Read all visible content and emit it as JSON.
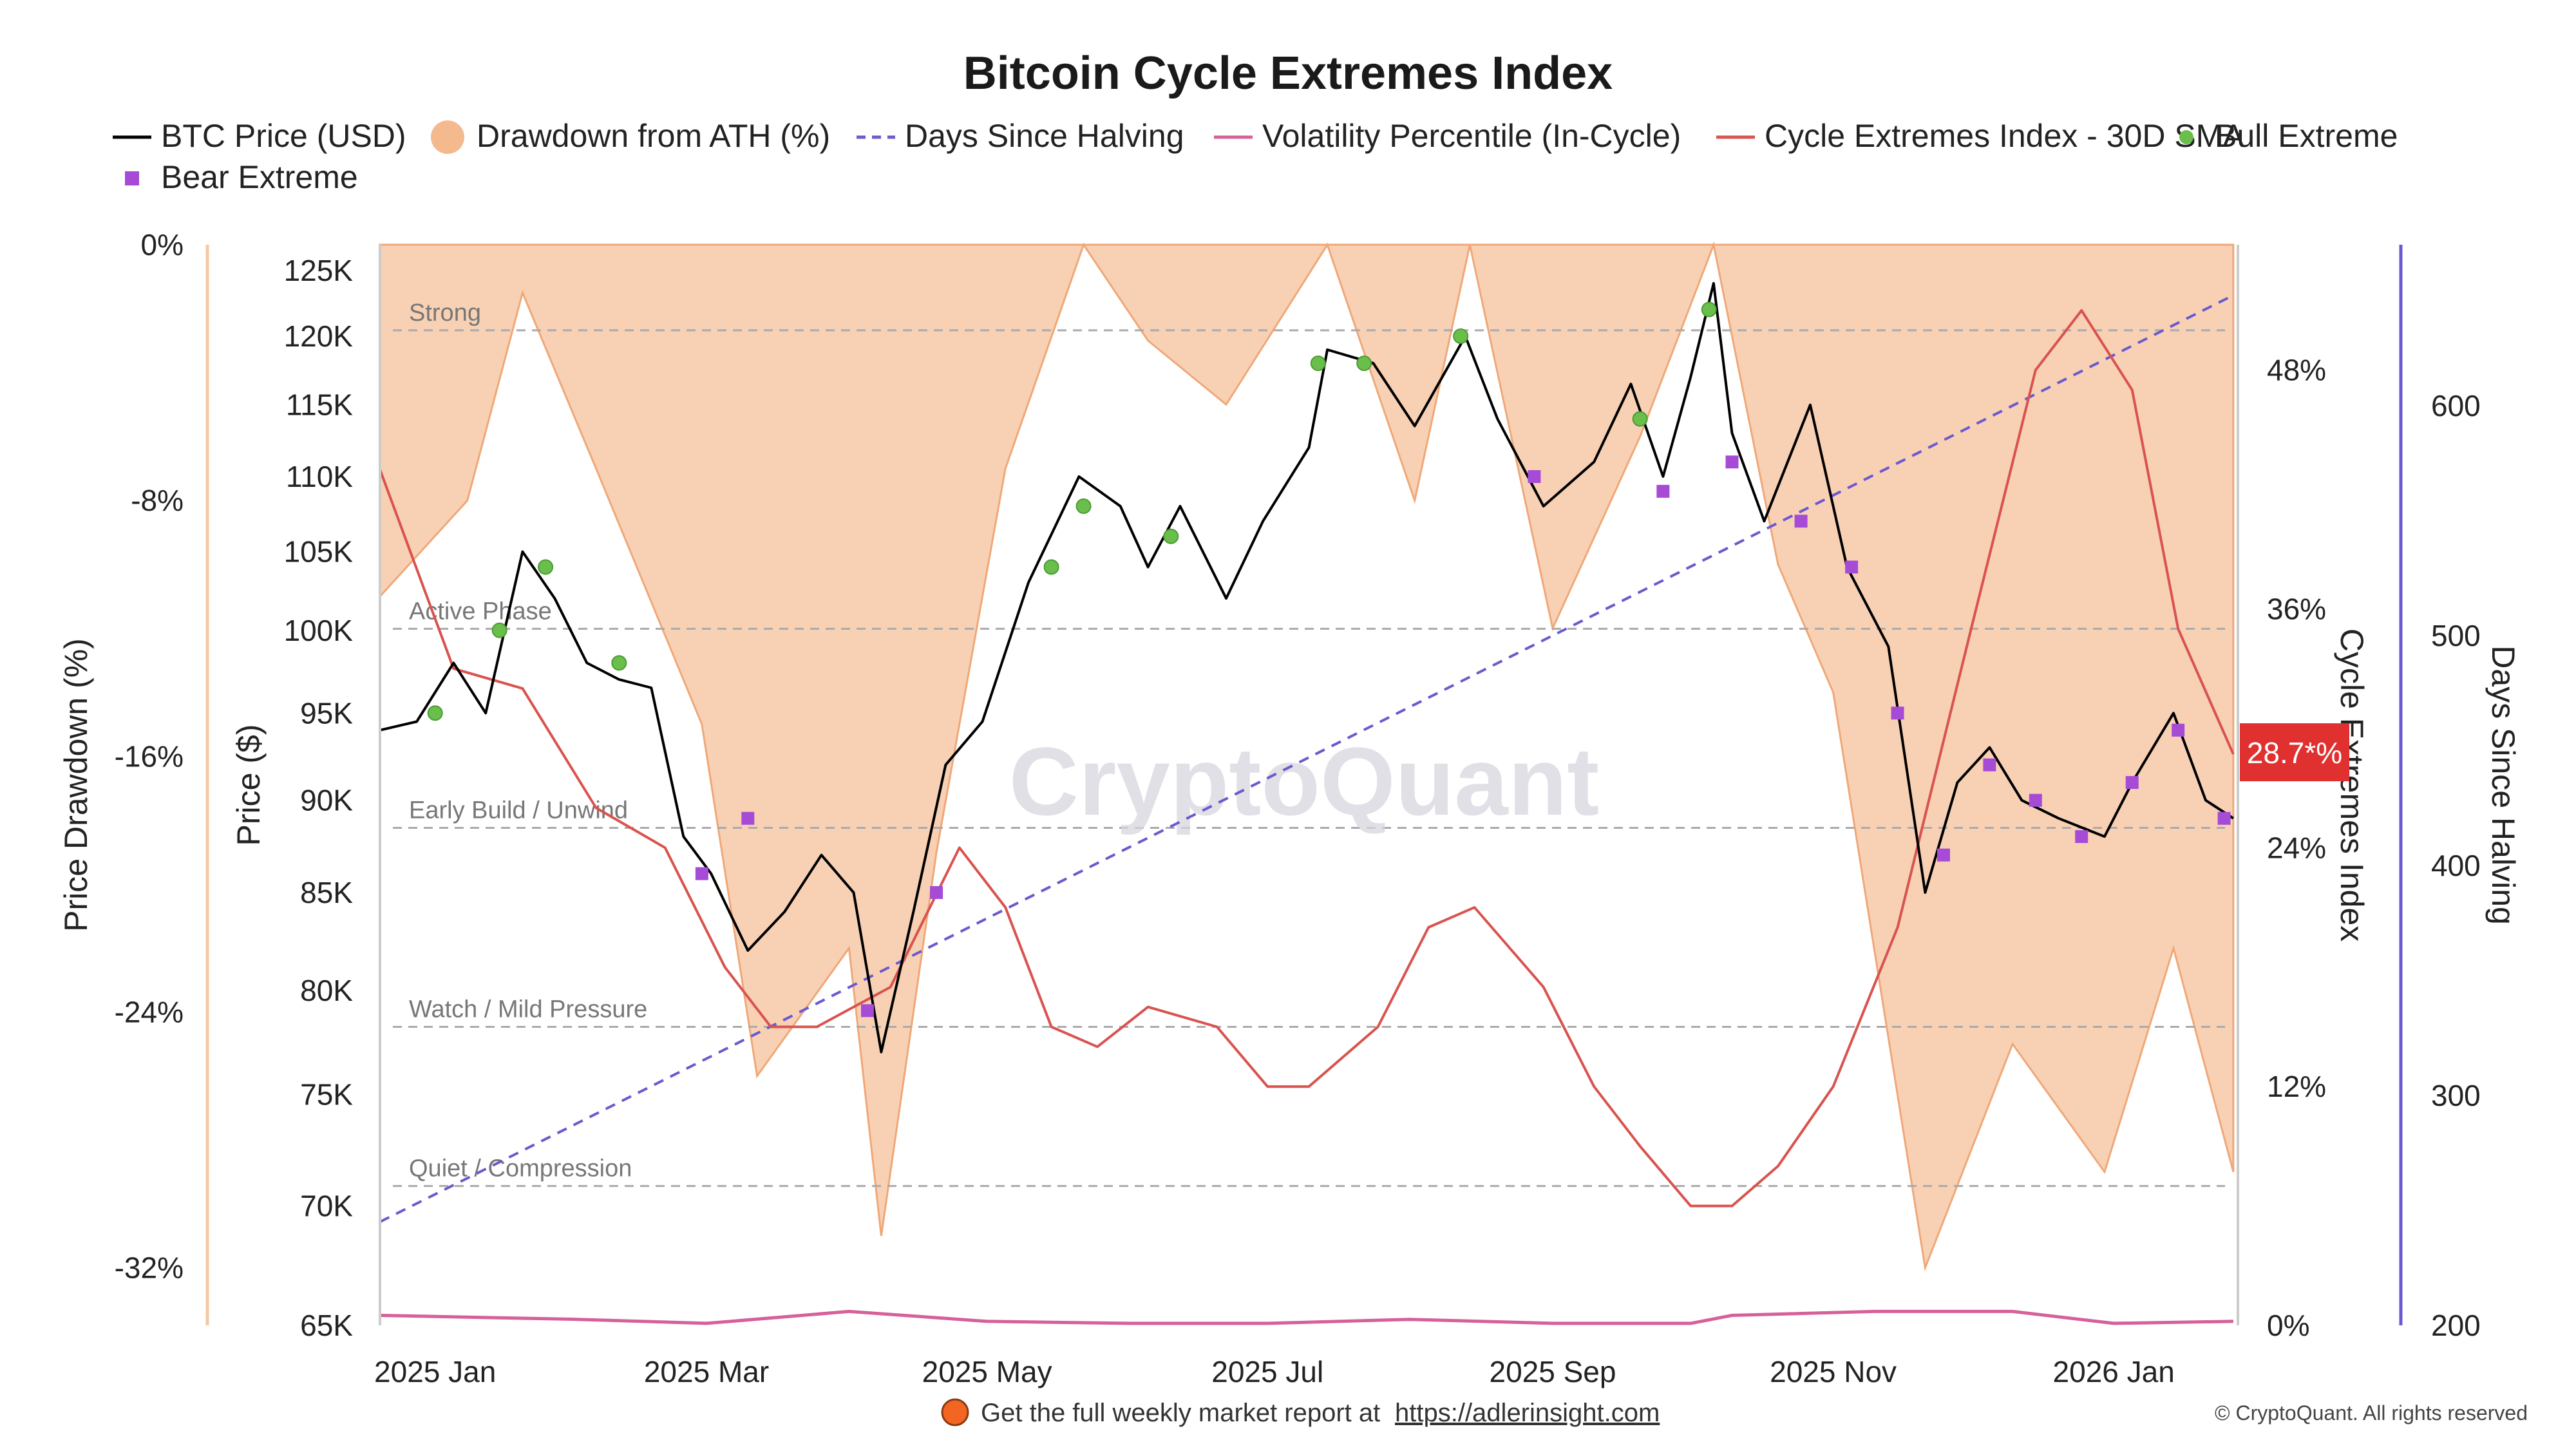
{
  "chart_data": {
    "type": "line",
    "title": "Bitcoin Cycle Extremes Index",
    "legend": [
      {
        "label": "BTC Price (USD)",
        "kind": "line",
        "color": "#000000"
      },
      {
        "label": "Drawdown from ATH (%)",
        "kind": "area",
        "color": "#f5b98e"
      },
      {
        "label": "Days Since Halving",
        "kind": "dashed",
        "color": "#6a5acd"
      },
      {
        "label": "Volatility Percentile (In-Cycle)",
        "kind": "line",
        "color": "#d6609a"
      },
      {
        "label": "Cycle Extremes Index - 30D SMA",
        "kind": "line",
        "color": "#d9534f"
      },
      {
        "label": "Bull Extreme",
        "kind": "dot",
        "color": "#6abf4b"
      },
      {
        "label": "Bear Extreme",
        "kind": "square",
        "color": "#a64bd6"
      }
    ],
    "axes": {
      "price": {
        "title": "Price ($)",
        "ticks": [
          "65K",
          "70K",
          "75K",
          "80K",
          "85K",
          "90K",
          "95K",
          "100K",
          "105K",
          "110K",
          "115K",
          "120K",
          "125K"
        ],
        "tick_values": [
          65000,
          70000,
          75000,
          80000,
          85000,
          90000,
          95000,
          100000,
          105000,
          110000,
          115000,
          120000,
          125000
        ],
        "scale": "log",
        "range": [
          65000,
          127000
        ]
      },
      "drawdown": {
        "title": "Price Drawdown (%)",
        "ticks": [
          "0%",
          "-8%",
          "-16%",
          "-24%",
          "-32%"
        ],
        "tick_values": [
          0,
          -8,
          -16,
          -24,
          -32
        ],
        "range": [
          -33.8,
          0
        ]
      },
      "cei": {
        "title": "Cycle Extremes Index",
        "ticks": [
          "0%",
          "12%",
          "24%",
          "36%",
          "48%"
        ],
        "tick_values": [
          0,
          12,
          24,
          36,
          48
        ],
        "range": [
          0,
          54.3
        ]
      },
      "days": {
        "title": "Days Since Halving",
        "ticks": [
          "200",
          "300",
          "400",
          "500",
          "600"
        ],
        "tick_values": [
          200,
          300,
          400,
          500,
          600
        ],
        "range": [
          200,
          670
        ]
      },
      "x": {
        "ticks": [
          "2025 Jan",
          "2025 Mar",
          "2025 May",
          "2025 Jul",
          "2025 Sep",
          "2025 Nov",
          "2026 Jan"
        ],
        "tick_dates": [
          "2025-01-01",
          "2025-03-01",
          "2025-05-01",
          "2025-07-01",
          "2025-09-01",
          "2025-11-01",
          "2026-01-01"
        ],
        "range": [
          "2024-12-20",
          "2026-01-28"
        ]
      }
    },
    "bands": [
      {
        "label": "Strong",
        "value": 50
      },
      {
        "label": "Active Phase",
        "value": 35
      },
      {
        "label": "Early Build / Unwind",
        "value": 25
      },
      {
        "label": "Watch / Mild Pressure",
        "value": 15
      },
      {
        "label": "Quiet / Compression",
        "value": 7
      }
    ],
    "current_label": "28.7*%",
    "series": [
      {
        "name": "BTC Price (USD)",
        "x": [
          "2024-12-20",
          "2024-12-28",
          "2025-01-05",
          "2025-01-12",
          "2025-01-20",
          "2025-01-27",
          "2025-02-03",
          "2025-02-10",
          "2025-02-17",
          "2025-02-24",
          "2025-03-02",
          "2025-03-10",
          "2025-03-18",
          "2025-03-26",
          "2025-04-02",
          "2025-04-08",
          "2025-04-15",
          "2025-04-22",
          "2025-04-30",
          "2025-05-10",
          "2025-05-21",
          "2025-05-30",
          "2025-06-05",
          "2025-06-12",
          "2025-06-22",
          "2025-06-30",
          "2025-07-10",
          "2025-07-14",
          "2025-07-24",
          "2025-08-02",
          "2025-08-13",
          "2025-08-20",
          "2025-08-30",
          "2025-09-10",
          "2025-09-18",
          "2025-09-25",
          "2025-10-01",
          "2025-10-06",
          "2025-10-10",
          "2025-10-17",
          "2025-10-27",
          "2025-11-04",
          "2025-11-13",
          "2025-11-21",
          "2025-11-28",
          "2025-12-05",
          "2025-12-12",
          "2025-12-20",
          "2025-12-30",
          "2026-01-05",
          "2026-01-14",
          "2026-01-21",
          "2026-01-27"
        ],
        "values": [
          94000,
          94500,
          98000,
          95000,
          105000,
          102000,
          98000,
          97000,
          96500,
          88000,
          86000,
          82000,
          84000,
          87000,
          85000,
          77000,
          84000,
          92000,
          94500,
          103000,
          110000,
          108000,
          104000,
          108000,
          102000,
          107000,
          112000,
          119000,
          118000,
          113500,
          120000,
          114000,
          108000,
          111000,
          116500,
          110000,
          117000,
          124000,
          113000,
          107000,
          115000,
          104000,
          99000,
          85000,
          91000,
          93000,
          90000,
          89000,
          88000,
          91000,
          95000,
          90000,
          89000
        ]
      },
      {
        "name": "Drawdown from ATH (%)",
        "x": [
          "2024-12-20",
          "2025-01-08",
          "2025-01-20",
          "2025-02-05",
          "2025-02-28",
          "2025-03-12",
          "2025-04-01",
          "2025-04-08",
          "2025-04-20",
          "2025-05-05",
          "2025-05-22",
          "2025-06-05",
          "2025-06-22",
          "2025-07-14",
          "2025-08-02",
          "2025-08-14",
          "2025-09-01",
          "2025-09-20",
          "2025-10-06",
          "2025-10-20",
          "2025-11-01",
          "2025-11-21",
          "2025-12-10",
          "2025-12-30",
          "2026-01-14",
          "2026-01-27"
        ],
        "values": [
          -11,
          -8,
          -1.5,
          -7,
          -15,
          -26,
          -22,
          -31,
          -19,
          -7,
          0,
          -3,
          -5,
          0,
          -8,
          0,
          -12,
          -6,
          0,
          -10,
          -14,
          -32,
          -25,
          -29,
          -22,
          -29
        ]
      },
      {
        "name": "Days Since Halving",
        "x": [
          "2024-12-20",
          "2026-01-27"
        ],
        "values": [
          245,
          648
        ]
      },
      {
        "name": "Volatility Percentile (In-Cycle)",
        "x": [
          "2024-12-20",
          "2025-02-01",
          "2025-03-01",
          "2025-04-01",
          "2025-05-01",
          "2025-06-01",
          "2025-07-01",
          "2025-08-01",
          "2025-09-01",
          "2025-10-01",
          "2025-10-10",
          "2025-11-10",
          "2025-12-10",
          "2026-01-01",
          "2026-01-27"
        ],
        "values": [
          0.5,
          0.3,
          0.1,
          0.7,
          0.2,
          0.1,
          0.1,
          0.3,
          0.1,
          0.1,
          0.5,
          0.7,
          0.7,
          0.1,
          0.2
        ]
      },
      {
        "name": "Cycle Extremes Index - 30D SMA",
        "x": [
          "2024-12-20",
          "2025-01-05",
          "2025-01-20",
          "2025-02-05",
          "2025-02-20",
          "2025-03-05",
          "2025-03-15",
          "2025-03-25",
          "2025-04-10",
          "2025-04-25",
          "2025-05-05",
          "2025-05-15",
          "2025-05-25",
          "2025-06-05",
          "2025-06-20",
          "2025-07-01",
          "2025-07-10",
          "2025-07-25",
          "2025-08-05",
          "2025-08-15",
          "2025-08-30",
          "2025-09-10",
          "2025-09-20",
          "2025-10-01",
          "2025-10-10",
          "2025-10-20",
          "2025-11-01",
          "2025-11-15",
          "2025-12-01",
          "2025-12-15",
          "2025-12-25",
          "2026-01-05",
          "2026-01-15",
          "2026-01-27"
        ],
        "values": [
          43,
          33,
          32,
          26,
          24,
          18,
          15,
          15,
          17,
          24,
          21,
          15,
          14,
          16,
          15,
          12,
          12,
          15,
          20,
          21,
          17,
          12,
          9,
          6,
          6,
          8,
          12,
          20,
          35,
          48,
          51,
          47,
          35,
          28.7
        ]
      },
      {
        "name": "Bull Extreme",
        "x": [
          "2025-01-01",
          "2025-01-15",
          "2025-01-25",
          "2025-02-10",
          "2025-05-15",
          "2025-05-22",
          "2025-06-10",
          "2025-07-12",
          "2025-07-22",
          "2025-08-12",
          "2025-09-20",
          "2025-10-05"
        ],
        "values": [
          95000,
          100000,
          104000,
          98000,
          104000,
          108000,
          106000,
          118000,
          118000,
          120000,
          114000,
          122000
        ]
      },
      {
        "name": "Bear Extreme",
        "x": [
          "2025-02-28",
          "2025-03-10",
          "2025-04-05",
          "2025-04-20",
          "2025-08-28",
          "2025-09-25",
          "2025-10-10",
          "2025-10-25",
          "2025-11-05",
          "2025-11-15",
          "2025-11-25",
          "2025-12-05",
          "2025-12-15",
          "2025-12-25",
          "2026-01-05",
          "2026-01-15",
          "2026-01-25"
        ],
        "values": [
          86000,
          89000,
          79000,
          85000,
          110000,
          109000,
          111000,
          107000,
          104000,
          95000,
          87000,
          92000,
          90000,
          88000,
          91000,
          94000,
          89000
        ]
      }
    ]
  },
  "footer": {
    "text": "Get the full weekly market report at",
    "link": "https://adlerinsight.com",
    "copyright": "© CryptoQuant. All rights reserved"
  },
  "watermark": "CryptoQuant",
  "colors": {
    "price": "#000000",
    "drawdown": "#f5b98e",
    "days": "#6a5acd",
    "volatility": "#d6609a",
    "cei": "#d9534f",
    "bull": "#6abf4b",
    "bear": "#a64bd6",
    "current_label_bg": "#e03030"
  }
}
